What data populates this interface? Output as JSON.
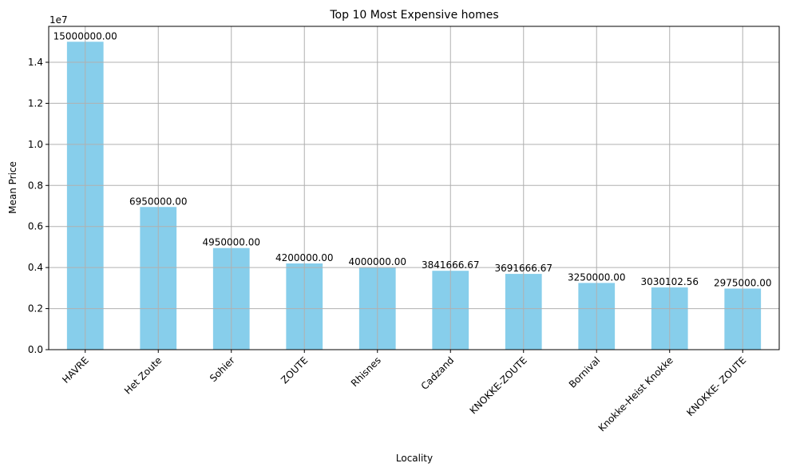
{
  "chart_data": {
    "type": "bar",
    "title": "Top 10 Most Expensive homes",
    "xlabel": "Locality",
    "ylabel": "Mean Price",
    "y_offset_label": "1e7",
    "y_scale": 10000000,
    "ylim": [
      0,
      15750000
    ],
    "y_ticks": [
      0,
      2000000,
      4000000,
      6000000,
      8000000,
      10000000,
      12000000,
      14000000
    ],
    "y_tick_labels": [
      "0.0",
      "0.2",
      "0.4",
      "0.6",
      "0.8",
      "1.0",
      "1.2",
      "1.4"
    ],
    "grid": true,
    "bar_color": "#87ceeb",
    "grid_color": "#b0b0b0",
    "categories": [
      "HAVRE",
      "Het Zoute",
      "Sohier",
      "ZOUTE",
      "Rhisnes",
      "Cadzand",
      "KNOKKE-ZOUTE",
      "Bornival",
      "Knokke-Heist Knokke",
      "KNOKKE- ZOUTE"
    ],
    "values": [
      15000000.0,
      6950000.0,
      4950000.0,
      4200000.0,
      4000000.0,
      3841666.67,
      3691666.67,
      3250000.0,
      3030102.56,
      2975000.0
    ],
    "value_labels": [
      "15000000.00",
      "6950000.00",
      "4950000.00",
      "4200000.00",
      "4000000.00",
      "3841666.67",
      "3691666.67",
      "3250000.00",
      "3030102.56",
      "2975000.00"
    ]
  }
}
